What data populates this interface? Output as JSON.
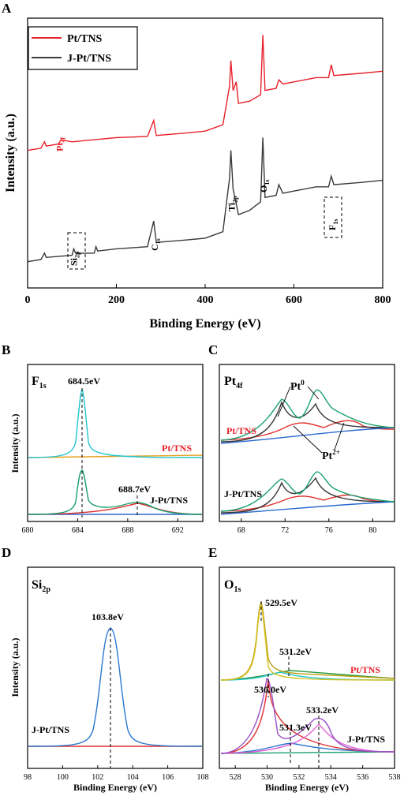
{
  "chart_data": [
    {
      "panel": "A",
      "type": "line",
      "xlabel": "Binding Energy (eV)",
      "ylabel": "Intensity (a.u.)",
      "xlim": [
        0,
        800
      ],
      "xticks": [
        "0",
        "200",
        "400",
        "600",
        "800"
      ],
      "legend": {
        "placement": "top-left",
        "entries": [
          "Pt/TNS",
          "J-Pt/TNS"
        ]
      },
      "series": [
        {
          "name": "Pt/TNS",
          "color": "#e8202a",
          "points": [
            [
              0,
              0.58
            ],
            [
              30,
              0.59
            ],
            [
              38,
              0.62
            ],
            [
              42,
              0.6
            ],
            [
              70,
              0.61
            ],
            [
              75,
              0.63
            ],
            [
              100,
              0.62
            ],
            [
              150,
              0.63
            ],
            [
              200,
              0.64
            ],
            [
              270,
              0.645
            ],
            [
              284,
              0.72
            ],
            [
              290,
              0.65
            ],
            [
              350,
              0.66
            ],
            [
              400,
              0.67
            ],
            [
              440,
              0.7
            ],
            [
              455,
              0.88
            ],
            [
              458,
              1.0
            ],
            [
              463,
              0.86
            ],
            [
              470,
              0.9
            ],
            [
              475,
              0.8
            ],
            [
              500,
              0.81
            ],
            [
              525,
              0.84
            ],
            [
              530,
              1.12
            ],
            [
              535,
              0.86
            ],
            [
              560,
              0.87
            ],
            [
              566,
              0.91
            ],
            [
              575,
              0.89
            ],
            [
              600,
              0.9
            ],
            [
              650,
              0.92
            ],
            [
              678,
              0.92
            ],
            [
              684,
              0.98
            ],
            [
              690,
              0.93
            ],
            [
              750,
              0.94
            ],
            [
              800,
              0.95
            ]
          ]
        },
        {
          "name": "J-Pt/TNS",
          "color": "#3a3a3a",
          "points": [
            [
              0,
              0.06
            ],
            [
              30,
              0.07
            ],
            [
              38,
              0.1
            ],
            [
              42,
              0.08
            ],
            [
              100,
              0.09
            ],
            [
              104,
              0.12
            ],
            [
              108,
              0.1
            ],
            [
              150,
              0.1
            ],
            [
              154,
              0.13
            ],
            [
              158,
              0.11
            ],
            [
              200,
              0.12
            ],
            [
              270,
              0.13
            ],
            [
              284,
              0.25
            ],
            [
              290,
              0.15
            ],
            [
              350,
              0.16
            ],
            [
              400,
              0.17
            ],
            [
              440,
              0.2
            ],
            [
              455,
              0.45
            ],
            [
              458,
              0.58
            ],
            [
              463,
              0.4
            ],
            [
              470,
              0.33
            ],
            [
              475,
              0.28
            ],
            [
              500,
              0.3
            ],
            [
              525,
              0.34
            ],
            [
              530,
              0.64
            ],
            [
              535,
              0.36
            ],
            [
              560,
              0.37
            ],
            [
              566,
              0.42
            ],
            [
              575,
              0.38
            ],
            [
              600,
              0.39
            ],
            [
              650,
              0.41
            ],
            [
              678,
              0.41
            ],
            [
              684,
              0.46
            ],
            [
              690,
              0.42
            ],
            [
              750,
              0.43
            ],
            [
              800,
              0.44
            ]
          ]
        }
      ],
      "annotations": [
        {
          "base": "Pt",
          "sub": "4f",
          "x": 70,
          "color": "#e8202a"
        },
        {
          "base": "Si",
          "sub": "2p",
          "x": 102
        },
        {
          "base": "C",
          "sub": "1s",
          "x": 284
        },
        {
          "base": "Ti",
          "sub": "2p",
          "x": 458
        },
        {
          "base": "O",
          "sub": "1s",
          "x": 530
        },
        {
          "base": "F",
          "sub": "1s",
          "x": 684
        }
      ]
    },
    {
      "panel": "B",
      "type": "line",
      "xlabel": "",
      "ylabel": "Intensity (a.u.)",
      "xlim": [
        680,
        694
      ],
      "xticks": [
        "680",
        "684",
        "688",
        "692"
      ],
      "element": {
        "base": "F",
        "sub": "1s"
      },
      "labels": [
        "684.5eV",
        "688.7eV",
        "Pt/TNS",
        "J-Pt/TNS"
      ],
      "peaks": [
        684.5,
        688.7
      ]
    },
    {
      "panel": "C",
      "type": "line",
      "xlabel": "",
      "xlim": [
        66,
        82
      ],
      "xticks": [
        "68",
        "72",
        "76",
        "80"
      ],
      "element": {
        "base": "Pt",
        "sub": "4f"
      },
      "labels": [
        "Pt/TNS",
        "J-Pt/TNS"
      ],
      "species": [
        {
          "base": "Pt",
          "sup": "0"
        },
        {
          "base": "Pt",
          "sup": "2+"
        }
      ]
    },
    {
      "panel": "D",
      "type": "line",
      "xlabel": "Binding Energy (eV)",
      "ylabel": "Intensity (a.u.)",
      "xlim": [
        98,
        108
      ],
      "xticks": [
        "98",
        "100",
        "102",
        "104",
        "106",
        "108"
      ],
      "element": {
        "base": "Si",
        "sub": "2p"
      },
      "labels": [
        "103.8eV",
        "J-Pt/TNS"
      ],
      "peaks": [
        103.8
      ]
    },
    {
      "panel": "E",
      "type": "line",
      "xlabel": "Binding Energy (eV)",
      "xlim": [
        527,
        538
      ],
      "xticks": [
        "528",
        "530",
        "532",
        "534",
        "536",
        "538"
      ],
      "element": {
        "base": "O",
        "sub": "1s"
      },
      "labels": [
        "529.5eV",
        "531.2eV",
        "Pt/TNS",
        "530.0eV",
        "531.3eV",
        "533.2eV",
        "J-Pt/TNS"
      ],
      "peaks": [
        529.5,
        531.2,
        530.0,
        531.3,
        533.2
      ]
    }
  ],
  "panel_letters": [
    "A",
    "B",
    "C",
    "D",
    "E"
  ]
}
